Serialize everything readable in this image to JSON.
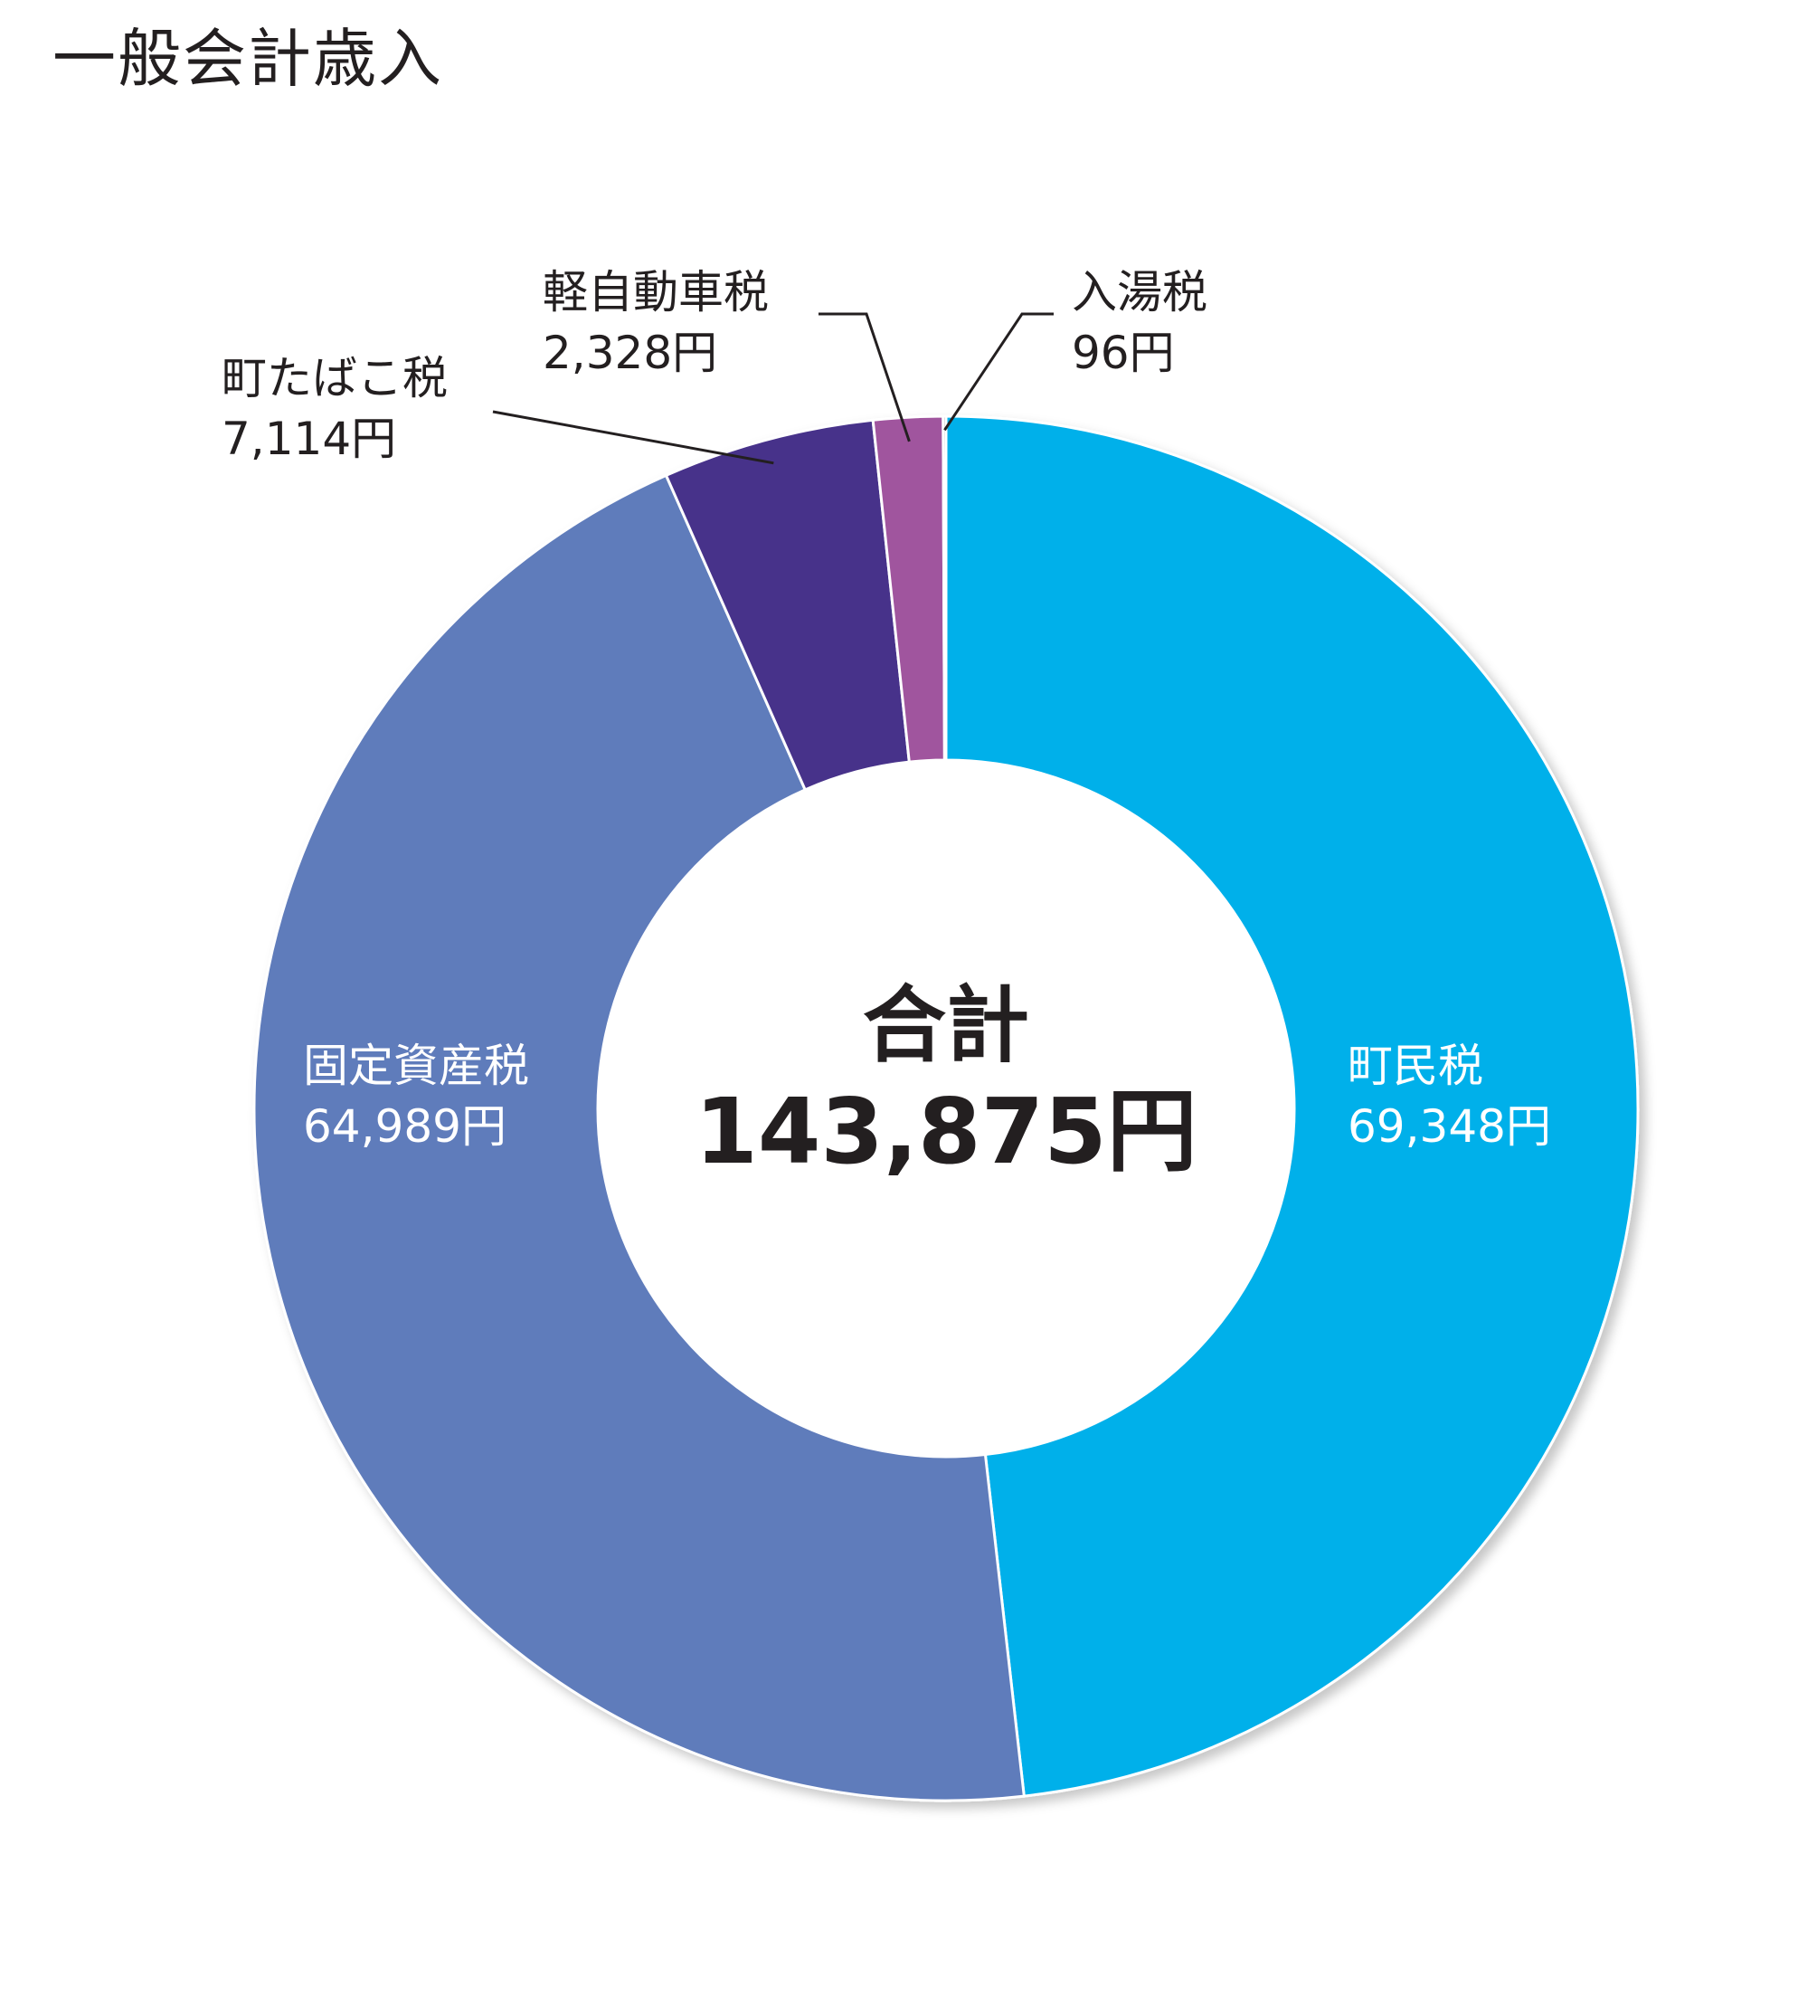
{
  "title": "一般会計歳入",
  "chart_data": {
    "type": "pie",
    "title": "一般会計歳入",
    "unit": "円",
    "center": {
      "label": "合計",
      "value_text": "143,875円",
      "total": 143875
    },
    "categories": [
      "町民税",
      "固定資産税",
      "町たばこ税",
      "軽自動車税",
      "入湯税"
    ],
    "values": [
      69348,
      64989,
      7114,
      2328,
      96
    ],
    "value_labels": [
      "69,348円",
      "64,989円",
      "7,114円",
      "2,328円",
      "96円"
    ],
    "colors": [
      "#00b0ea",
      "#5f7bbb",
      "#46318a",
      "#a0559e",
      "#5a5a5a"
    ],
    "label_placement": [
      "inside",
      "inside",
      "outside",
      "outside",
      "outside"
    ]
  }
}
